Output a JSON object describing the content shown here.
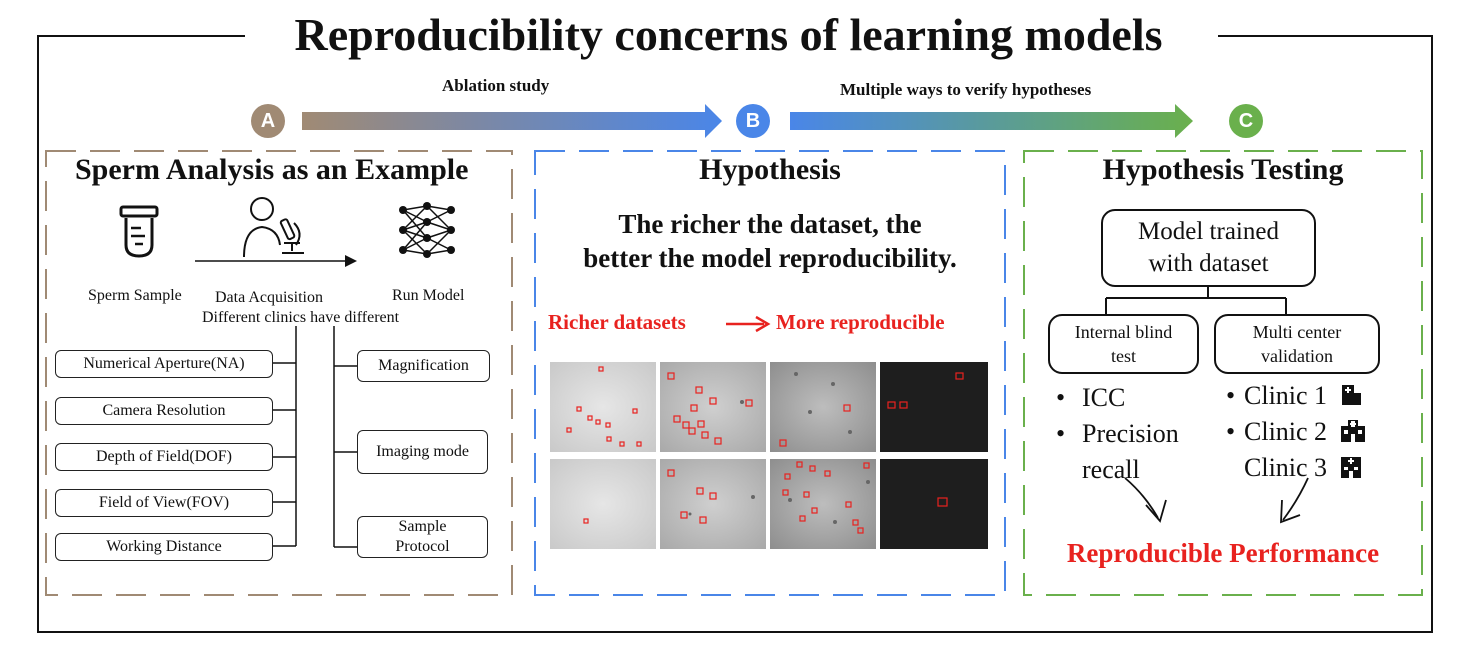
{
  "title": "Reproducibility concerns of learning models",
  "steps": {
    "ablation_label": "Ablation study",
    "verify_label": "Multiple ways to verify hypotheses",
    "a": "A",
    "b": "B",
    "c": "C",
    "colors": {
      "a": "#a08a74",
      "b": "#4a86e8",
      "c": "#6ab04c"
    }
  },
  "panel_a": {
    "title": "Sperm Analysis as an Example",
    "sperm_sample": "Sperm Sample",
    "data_acquisition": "Data Acquisition",
    "run_model": "Run Model",
    "clinics_note": "Different clinics have different",
    "left_factors": [
      "Numerical Aperture(NA)",
      "Camera Resolution",
      "Depth of Field(DOF)",
      "Field of View(FOV)",
      "Working Distance"
    ],
    "right_factors": [
      "Magnification",
      "Imaging mode",
      "Sample Protocol"
    ]
  },
  "panel_b": {
    "title": "Hypothesis",
    "hypothesis_line1": "The richer the dataset, the",
    "hypothesis_line2": "better the model reproducibility.",
    "richer": "Richer datasets",
    "more_repro": "More reproducible"
  },
  "panel_c": {
    "title": "Hypothesis Testing",
    "model_line1": "Model trained",
    "model_line2": "with dataset",
    "internal_line1": "Internal blind",
    "internal_line2": "test",
    "multi_line1": "Multi center",
    "multi_line2": "validation",
    "internal_items": [
      "ICC",
      "Precision",
      "recall"
    ],
    "clinics": [
      "Clinic 1",
      "Clinic 2",
      "Clinic 3"
    ],
    "result": "Reproducible Performance"
  }
}
